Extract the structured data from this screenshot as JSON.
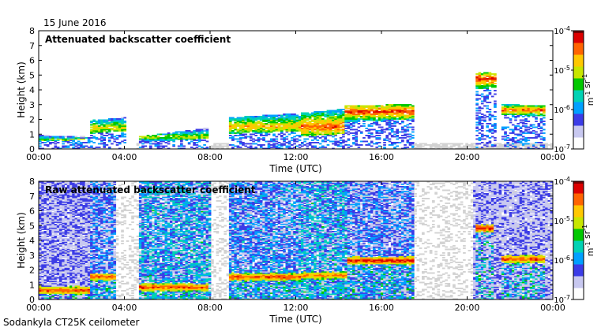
{
  "date_label": "15 June 2016",
  "instrument_label": "Sodankyla CT25K ceilometer",
  "colors": {
    "cloud_gray": "#d2d2d2",
    "layer_red": "#d42a1c",
    "colormap": [
      "#ffffff",
      "#c8c8f0",
      "#3c3ce6",
      "#00a0ff",
      "#00d2b4",
      "#00c800",
      "#c8e600",
      "#ffc800",
      "#ff6400",
      "#dc0000",
      "#780000"
    ]
  },
  "chart_data": [
    {
      "type": "heatmap",
      "title": "Attenuated backscatter coefficient",
      "xlabel": "Time (UTC)",
      "ylabel": "Height (km)",
      "xlim": [
        0,
        24
      ],
      "ylim": [
        0,
        8
      ],
      "x_ticks": [
        "00:00",
        "04:00",
        "08:00",
        "12:00",
        "16:00",
        "20:00",
        "00:00"
      ],
      "x_tick_values": [
        0,
        4,
        8,
        12,
        16,
        20,
        24
      ],
      "y_ticks": [
        "0",
        "1",
        "2",
        "3",
        "4",
        "5",
        "6",
        "7",
        "8"
      ],
      "y_tick_values": [
        0,
        1,
        2,
        3,
        4,
        5,
        6,
        7,
        8
      ],
      "colorbar": {
        "scale": "log",
        "range": [
          1e-07,
          0.0001
        ],
        "tick_labels": [
          "10-7",
          "10-6",
          "10-5",
          "10-4"
        ],
        "label": "m-1 sr-1"
      },
      "layers": [
        {
          "t": [
            0.0,
            2.3
          ],
          "base_km": [
            0.5,
            0.6
          ],
          "top_km": [
            0.9,
            0.8
          ],
          "peak_km": 0.6,
          "intensity": 0.55
        },
        {
          "t": [
            2.3,
            4.0
          ],
          "base_km": [
            1.0,
            1.2
          ],
          "top_km": [
            1.9,
            2.1
          ],
          "peak_km": 1.4,
          "intensity": 0.65
        },
        {
          "t": [
            4.6,
            7.9
          ],
          "base_km": [
            0.4,
            0.7
          ],
          "top_km": [
            0.8,
            1.4
          ],
          "peak_km": 0.8,
          "intensity": 0.6
        },
        {
          "t": [
            8.8,
            12.2
          ],
          "base_km": [
            1.0,
            1.2
          ],
          "top_km": [
            2.1,
            2.4
          ],
          "peak_km": 1.5,
          "intensity": 0.7
        },
        {
          "t": [
            12.2,
            14.2
          ],
          "base_km": [
            0.8,
            1.0
          ],
          "top_km": [
            2.4,
            2.7
          ],
          "peak_km": 1.5,
          "intensity": 0.8
        },
        {
          "t": [
            14.2,
            17.4
          ],
          "base_km": [
            1.8,
            2.0
          ],
          "top_km": [
            2.9,
            3.0
          ],
          "peak_km": 2.5,
          "intensity": 0.85
        },
        {
          "t": [
            20.3,
            21.3
          ],
          "base_km": [
            4.0,
            4.1
          ],
          "top_km": [
            5.2,
            5.1
          ],
          "peak_km": 4.7,
          "intensity": 0.85
        },
        {
          "t": [
            21.5,
            23.6
          ],
          "base_km": [
            2.3,
            2.2
          ],
          "top_km": [
            3.0,
            2.9
          ],
          "peak_km": 2.6,
          "intensity": 0.8
        }
      ],
      "gap_hours": [
        [
          4.5,
          4.6
        ],
        [
          8.0,
          8.8
        ],
        [
          17.4,
          24.0
        ]
      ]
    },
    {
      "type": "heatmap",
      "title": "Raw attenuated backscatter coefficient",
      "xlabel": "Time (UTC)",
      "ylabel": "Height (km)",
      "xlim": [
        0,
        24
      ],
      "ylim": [
        0,
        8
      ],
      "x_ticks": [
        "00:00",
        "04:00",
        "08:00",
        "12:00",
        "16:00",
        "20:00",
        "00:00"
      ],
      "x_tick_values": [
        0,
        4,
        8,
        12,
        16,
        20,
        24
      ],
      "y_ticks": [
        "0",
        "1",
        "2",
        "3",
        "4",
        "5",
        "6",
        "7",
        "8"
      ],
      "y_tick_values": [
        0,
        1,
        2,
        3,
        4,
        5,
        6,
        7,
        8
      ],
      "colorbar": {
        "scale": "log",
        "range": [
          1e-07,
          0.0001
        ],
        "tick_labels": [
          "10-7",
          "10-6",
          "10-5",
          "10-4"
        ],
        "label": "m-1 sr-1"
      },
      "noise_regions": [
        {
          "t": [
            0.0,
            2.3
          ],
          "level": 0.18
        },
        {
          "t": [
            2.3,
            3.6
          ],
          "level": 0.3
        },
        {
          "t": [
            4.6,
            8.0
          ],
          "level": 0.45
        },
        {
          "t": [
            8.8,
            12.0
          ],
          "level": 0.35
        },
        {
          "t": [
            12.0,
            14.3
          ],
          "level": 0.45
        },
        {
          "t": [
            14.3,
            17.4
          ],
          "level": 0.3
        },
        {
          "t": [
            20.2,
            23.9
          ],
          "level": 0.15
        }
      ],
      "layers": [
        {
          "t": [
            0.0,
            2.3
          ],
          "peak_km": 0.6,
          "intensity": 0.85
        },
        {
          "t": [
            2.3,
            3.6
          ],
          "peak_km": 1.5,
          "intensity": 0.85
        },
        {
          "t": [
            4.6,
            7.9
          ],
          "peak_km": 0.8,
          "intensity": 0.85
        },
        {
          "t": [
            8.8,
            12.2
          ],
          "peak_km": 1.5,
          "intensity": 0.85
        },
        {
          "t": [
            12.2,
            14.3
          ],
          "peak_km": 1.6,
          "intensity": 0.8
        },
        {
          "t": [
            14.3,
            17.4
          ],
          "peak_km": 2.6,
          "intensity": 0.9
        },
        {
          "t": [
            20.3,
            21.2
          ],
          "peak_km": 4.8,
          "intensity": 0.9
        },
        {
          "t": [
            21.5,
            23.6
          ],
          "peak_km": 2.7,
          "intensity": 0.85
        }
      ]
    }
  ]
}
